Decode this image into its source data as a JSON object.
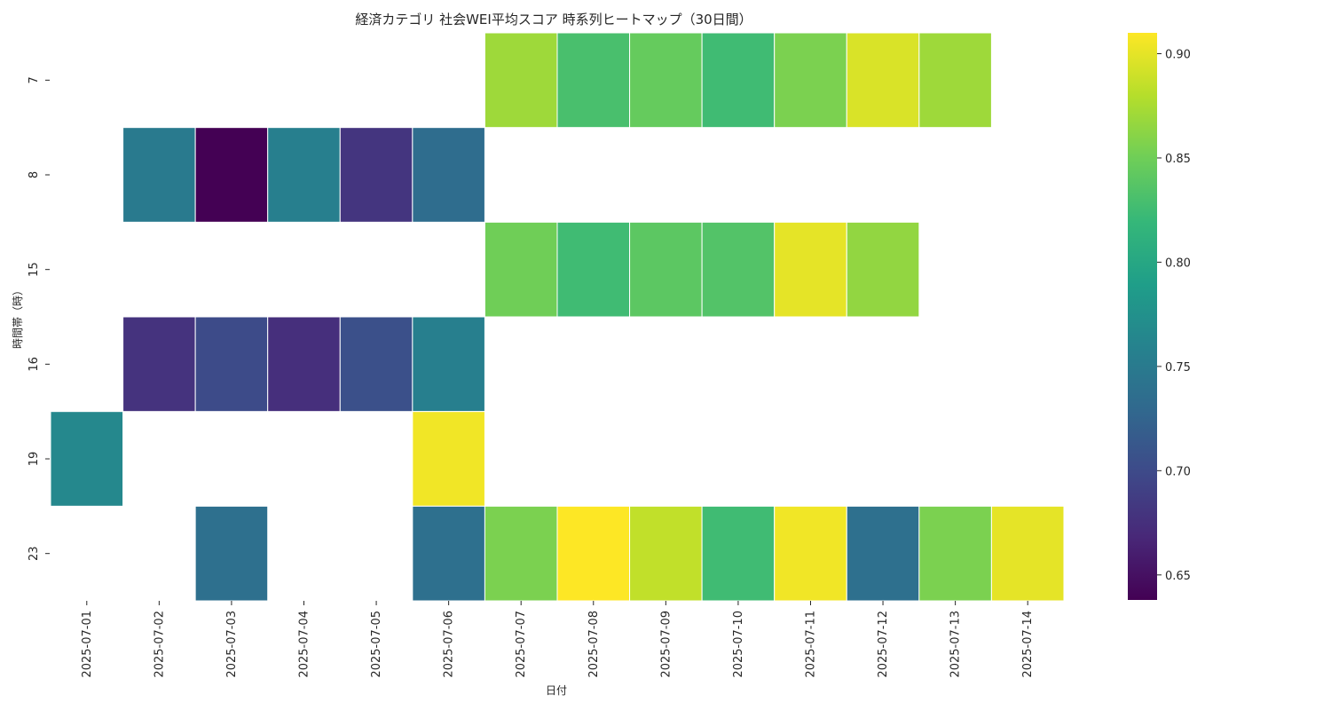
{
  "chart_data": {
    "type": "heatmap",
    "title": "経済カテゴリ 社会WEI平均スコア 時系列ヒートマップ（30日間）",
    "xlabel": "日付",
    "ylabel": "時間帯（時）",
    "x": [
      "2025-07-01",
      "2025-07-02",
      "2025-07-03",
      "2025-07-04",
      "2025-07-05",
      "2025-07-06",
      "2025-07-07",
      "2025-07-08",
      "2025-07-09",
      "2025-07-10",
      "2025-07-11",
      "2025-07-12",
      "2025-07-13",
      "2025-07-14"
    ],
    "y": [
      "7",
      "8",
      "15",
      "16",
      "19",
      "23"
    ],
    "values": [
      [
        null,
        null,
        null,
        null,
        null,
        null,
        0.87,
        0.83,
        0.845,
        0.825,
        0.855,
        0.895,
        0.87,
        null
      ],
      [
        null,
        0.75,
        0.638,
        0.755,
        0.68,
        0.735,
        null,
        null,
        null,
        null,
        null,
        null,
        null,
        null
      ],
      [
        null,
        null,
        null,
        null,
        null,
        null,
        0.85,
        0.825,
        0.84,
        0.835,
        0.9,
        0.865,
        null,
        null
      ],
      [
        null,
        0.678,
        0.7,
        0.675,
        0.705,
        0.755,
        null,
        null,
        null,
        null,
        null,
        null,
        null,
        null
      ],
      [
        0.765,
        null,
        null,
        null,
        null,
        0.905,
        null,
        null,
        null,
        null,
        null,
        null,
        null,
        null
      ],
      [
        null,
        null,
        0.738,
        null,
        null,
        0.738,
        0.855,
        0.91,
        0.885,
        0.825,
        0.905,
        0.738,
        0.855,
        0.9
      ]
    ],
    "colormap": "viridis",
    "colorbar": {
      "min": 0.638,
      "max": 0.91,
      "ticks": [
        "0.65",
        "0.70",
        "0.75",
        "0.80",
        "0.85",
        "0.90"
      ]
    }
  }
}
